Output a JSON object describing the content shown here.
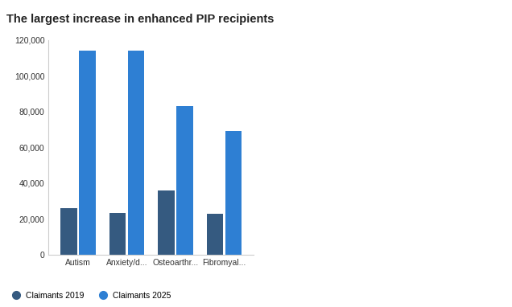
{
  "chart_data": {
    "type": "bar",
    "title": "The largest increase in enhanced PIP recipients",
    "categories": [
      "Autism",
      "Anxiety/d...",
      "Osteoarthr...",
      "Fibromyal..."
    ],
    "series": [
      {
        "name": "Claimants 2019",
        "color": "#355a80",
        "values": [
          26000,
          23500,
          36000,
          23000
        ]
      },
      {
        "name": "Claimants 2025",
        "color": "#2e7fd3",
        "values": [
          114000,
          114000,
          83000,
          69000
        ]
      }
    ],
    "ylim": [
      0,
      120000
    ],
    "yticks": [
      0,
      {
        "value": 20000,
        "label": "20,000"
      },
      {
        "value": 40000,
        "label": "40,000"
      },
      {
        "value": 60000,
        "label": "60,000"
      },
      {
        "value": 80000,
        "label": "80,000"
      },
      {
        "value": 100000,
        "label": "100,000"
      },
      {
        "value": 120000,
        "label": "120,000"
      }
    ],
    "grid": false,
    "legend": "lower left"
  }
}
